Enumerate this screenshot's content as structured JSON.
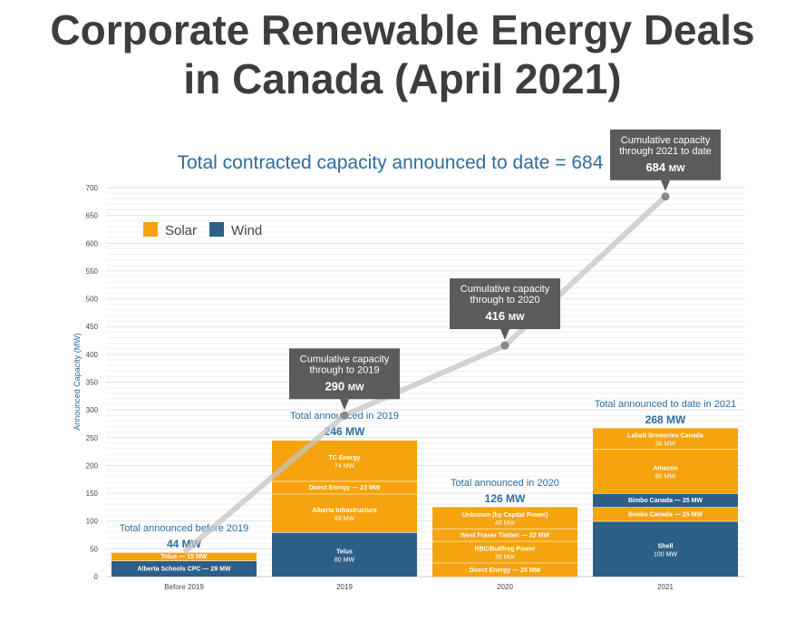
{
  "page": {
    "title_line1": "Corporate Renewable Energy Deals",
    "title_line2": "in Canada (April 2021)"
  },
  "colors": {
    "solar": "#f5a30f",
    "wind": "#2d5f86",
    "title_blue": "#2c6ea0",
    "callout": "#5b5b5b",
    "trend_line": "#c4c4c4",
    "grid": "#e2e2e2"
  },
  "chart_data": {
    "type": "bar",
    "stacked": true,
    "title": "Total contracted capacity announced to date = 684 MW",
    "ylabel": "Announced Capacity (MW)",
    "xlabel": "",
    "ylim": [
      0,
      700
    ],
    "yticks": [
      0,
      50,
      100,
      150,
      200,
      250,
      300,
      350,
      400,
      450,
      500,
      550,
      600,
      650,
      700
    ],
    "grid": true,
    "legend_position": "top-left",
    "legend": [
      {
        "name": "Solar",
        "color_key": "solar"
      },
      {
        "name": "Wind",
        "color_key": "wind"
      }
    ],
    "categories": [
      "Before 2019",
      "2019",
      "2020",
      "2021"
    ],
    "groups": [
      {
        "label": "Before 2019",
        "total_text": "Total announced before 2019",
        "total_value": "44 MW",
        "segments": [
          {
            "name": "Alberta Schools CPC",
            "value": 29,
            "type": "wind",
            "text": "Alberta Schools CPC — 29 MW"
          },
          {
            "name": "Telus",
            "value": 15,
            "type": "solar",
            "text": "Telus — 15 MW"
          }
        ]
      },
      {
        "label": "2019",
        "total_text": "Total announced in 2019",
        "total_value": "246 MW",
        "segments": [
          {
            "name": "Telus",
            "value": 80,
            "type": "wind",
            "text": "Telus",
            "sub": "80 MW"
          },
          {
            "name": "Alberta Infrastructure",
            "value": 69,
            "type": "solar",
            "text": "Alberta Infrastructure",
            "sub": "69 MW"
          },
          {
            "name": "Direct Energy",
            "value": 23,
            "type": "solar",
            "text": "Direct Energy — 23 MW"
          },
          {
            "name": "TC Energy",
            "value": 74,
            "type": "solar",
            "text": "TC Energy",
            "sub": "74 MW"
          }
        ]
      },
      {
        "label": "2020",
        "total_text": "Total announced in 2020",
        "total_value": "126 MW",
        "segments": [
          {
            "name": "Direct Energy",
            "value": 25,
            "type": "solar",
            "text": "Direct Energy — 25 MW"
          },
          {
            "name": "RBC/Bullfrog Power",
            "value": 39,
            "type": "solar",
            "text": "RBC/Bullfrog Power",
            "sub": "39 MW"
          },
          {
            "name": "West Fraser Timber",
            "value": 22,
            "type": "solar",
            "text": "West Fraser Timber — 22 MW"
          },
          {
            "name": "Unknown (by Capital Power)",
            "value": 40,
            "type": "solar",
            "text": "Unknown (by Capital Power)",
            "sub": "40 MW"
          }
        ]
      },
      {
        "label": "2021",
        "total_text": "Total announced to date in 2021",
        "total_value": "268 MW",
        "segments": [
          {
            "name": "Shell",
            "value": 100,
            "type": "wind",
            "text": "Shell",
            "sub": "100 MW"
          },
          {
            "name": "Bimbo Canada",
            "value": 25,
            "type": "solar",
            "text": "Bimbo Canada — 25 MW"
          },
          {
            "name": "Bimbo Canada",
            "value": 25,
            "type": "wind",
            "text": "Bimbo Canada — 25 MW"
          },
          {
            "name": "Amazon",
            "value": 80,
            "type": "solar",
            "text": "Amazon",
            "sub": "80 MW"
          },
          {
            "name": "Labatt Breweries Canada",
            "value": 38,
            "type": "solar",
            "text": "Labatt Breweries Canada",
            "sub": "38 MW"
          }
        ]
      }
    ],
    "cumulative_line": {
      "x": [
        "Before 2019",
        "2019",
        "2020",
        "2021"
      ],
      "y": [
        44,
        290,
        416,
        684
      ],
      "callouts": [
        {
          "category": "2019",
          "lines": [
            "Cumulative capacity",
            "through to 2019"
          ],
          "value": "290",
          "unit": "MW"
        },
        {
          "category": "2020",
          "lines": [
            "Cumulative capacity",
            "through to 2020"
          ],
          "value": "416",
          "unit": "MW"
        },
        {
          "category": "2021",
          "lines": [
            "Cumulative capacity",
            "through 2021 to date"
          ],
          "value": "684",
          "unit": "MW"
        }
      ]
    }
  }
}
